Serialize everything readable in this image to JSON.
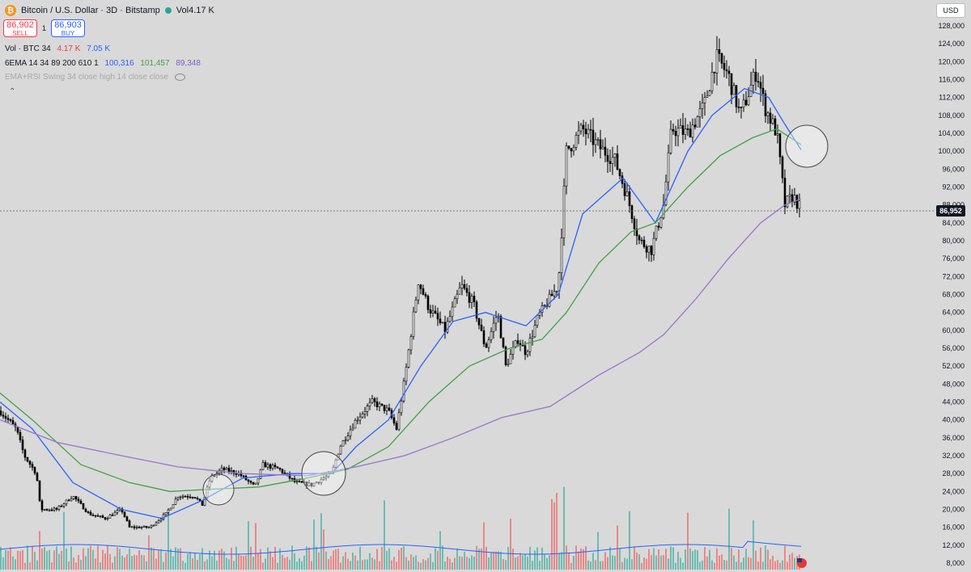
{
  "header": {
    "symbol": "Bitcoin / U.S. Dollar · 3D · Bitstamp",
    "volume_label": "Vol",
    "volume_value": "4.17 K"
  },
  "trade": {
    "sell_price": "86,902",
    "sell_label": "SELL",
    "spread": "1",
    "buy_price": "86,903",
    "buy_label": "BUY"
  },
  "indicators": {
    "vol": {
      "name": "Vol · BTC 34",
      "v1": "4.17 K",
      "v2": "7.05 K"
    },
    "ema": {
      "name": "6EMA 14 34 89 200 610 1",
      "v1": "100,316",
      "v2": "101,457",
      "v3": "89,348"
    },
    "rsi": {
      "name": "EMA+RSI Swing 34 close high 14 close close"
    }
  },
  "currency_button": "USD",
  "price_axis": {
    "ticks": [
      "128,000",
      "124,000",
      "120,000",
      "116,000",
      "112,000",
      "108,000",
      "104,000",
      "100,000",
      "96,000",
      "92,000",
      "88,000",
      "84,000",
      "80,000",
      "76,000",
      "72,000",
      "68,000",
      "64,000",
      "60,000",
      "56,000",
      "52,000",
      "48,000",
      "44,000",
      "40,000",
      "36,000",
      "32,000",
      "28,000",
      "24,000",
      "20,000",
      "16,000",
      "12,000",
      "8,000"
    ],
    "current_price": "86,952"
  },
  "colors": {
    "ema_blue": "#2962ff",
    "ema_green": "#43a047",
    "ema_purple": "#9575cd",
    "candle": "#000000",
    "vol_up": "#26a69a",
    "vol_down": "#ef5350",
    "bg": "#d9d9d9"
  },
  "chart_data": {
    "type": "line",
    "ylim": [
      6000,
      130000
    ],
    "y_ticks": [
      128000,
      124000,
      120000,
      116000,
      112000,
      108000,
      104000,
      100000,
      96000,
      92000,
      88000,
      84000,
      80000,
      76000,
      72000,
      68000,
      64000,
      60000,
      56000,
      52000,
      48000,
      44000,
      40000,
      36000,
      32000,
      28000,
      24000,
      20000,
      16000,
      12000,
      8000
    ],
    "price_path": [
      [
        0,
        42000
      ],
      [
        20,
        38000
      ],
      [
        30,
        32000
      ],
      [
        45,
        28000
      ],
      [
        50,
        20000
      ],
      [
        70,
        20000
      ],
      [
        90,
        23000
      ],
      [
        110,
        19000
      ],
      [
        130,
        18000
      ],
      [
        150,
        20000
      ],
      [
        160,
        16000
      ],
      [
        185,
        16000
      ],
      [
        205,
        19000
      ],
      [
        220,
        23000
      ],
      [
        240,
        23000
      ],
      [
        250,
        21000
      ],
      [
        260,
        27000
      ],
      [
        275,
        29000
      ],
      [
        295,
        28000
      ],
      [
        315,
        25000
      ],
      [
        325,
        30000
      ],
      [
        345,
        29000
      ],
      [
        365,
        26000
      ],
      [
        385,
        25500
      ],
      [
        410,
        28000
      ],
      [
        420,
        34000
      ],
      [
        440,
        40000
      ],
      [
        460,
        44000
      ],
      [
        480,
        42000
      ],
      [
        490,
        38000
      ],
      [
        500,
        49000
      ],
      [
        510,
        62000
      ],
      [
        517,
        71000
      ],
      [
        530,
        65000
      ],
      [
        550,
        60000
      ],
      [
        570,
        70000
      ],
      [
        585,
        66000
      ],
      [
        600,
        56000
      ],
      [
        615,
        64000
      ],
      [
        625,
        52000
      ],
      [
        640,
        58000
      ],
      [
        650,
        55000
      ],
      [
        665,
        63000
      ],
      [
        690,
        70000
      ],
      [
        700,
        100000
      ],
      [
        720,
        105000
      ],
      [
        740,
        101000
      ],
      [
        760,
        98000
      ],
      [
        775,
        90000
      ],
      [
        790,
        80000
      ],
      [
        805,
        78000
      ],
      [
        820,
        88000
      ],
      [
        830,
        105000
      ],
      [
        850,
        104000
      ],
      [
        870,
        110000
      ],
      [
        885,
        121000
      ],
      [
        900,
        117000
      ],
      [
        915,
        108000
      ],
      [
        935,
        118000
      ],
      [
        945,
        110000
      ],
      [
        960,
        104000
      ],
      [
        970,
        88000
      ],
      [
        980,
        90000
      ],
      [
        990,
        87000
      ]
    ],
    "series": [
      {
        "values": [
          [
            0,
            44000
          ],
          [
            40,
            38000
          ],
          [
            90,
            26000
          ],
          [
            150,
            20000
          ],
          [
            200,
            18000
          ],
          [
            250,
            22000
          ],
          [
            300,
            27000
          ],
          [
            360,
            28000
          ],
          [
            410,
            28000
          ],
          [
            440,
            34000
          ],
          [
            480,
            40000
          ],
          [
            520,
            52000
          ],
          [
            560,
            62000
          ],
          [
            600,
            64000
          ],
          [
            650,
            61000
          ],
          [
            690,
            68000
          ],
          [
            720,
            86000
          ],
          [
            770,
            94000
          ],
          [
            810,
            84000
          ],
          [
            850,
            100000
          ],
          [
            880,
            108000
          ],
          [
            920,
            114000
          ],
          [
            950,
            112000
          ],
          [
            970,
            106000
          ],
          [
            990,
            100316
          ]
        ]
      },
      {
        "values": [
          [
            0,
            46000
          ],
          [
            40,
            40000
          ],
          [
            100,
            30000
          ],
          [
            160,
            26000
          ],
          [
            210,
            24000
          ],
          [
            260,
            24500
          ],
          [
            320,
            25000
          ],
          [
            380,
            27000
          ],
          [
            430,
            29000
          ],
          [
            480,
            34000
          ],
          [
            530,
            44000
          ],
          [
            580,
            52000
          ],
          [
            630,
            56000
          ],
          [
            670,
            58000
          ],
          [
            700,
            64000
          ],
          [
            740,
            75000
          ],
          [
            780,
            82000
          ],
          [
            810,
            84000
          ],
          [
            850,
            92000
          ],
          [
            890,
            99000
          ],
          [
            930,
            103000
          ],
          [
            960,
            105000
          ],
          [
            990,
            101457
          ]
        ]
      },
      {
        "values": [
          [
            0,
            40000
          ],
          [
            70,
            35000
          ],
          [
            150,
            32000
          ],
          [
            220,
            29500
          ],
          [
            300,
            28000
          ],
          [
            380,
            27500
          ],
          [
            440,
            29500
          ],
          [
            500,
            32000
          ],
          [
            560,
            36000
          ],
          [
            620,
            40500
          ],
          [
            680,
            43000
          ],
          [
            740,
            50000
          ],
          [
            790,
            55000
          ],
          [
            820,
            59000
          ],
          [
            860,
            67000
          ],
          [
            900,
            76000
          ],
          [
            940,
            84000
          ],
          [
            970,
            88000
          ],
          [
            990,
            89348
          ]
        ]
      }
    ]
  }
}
